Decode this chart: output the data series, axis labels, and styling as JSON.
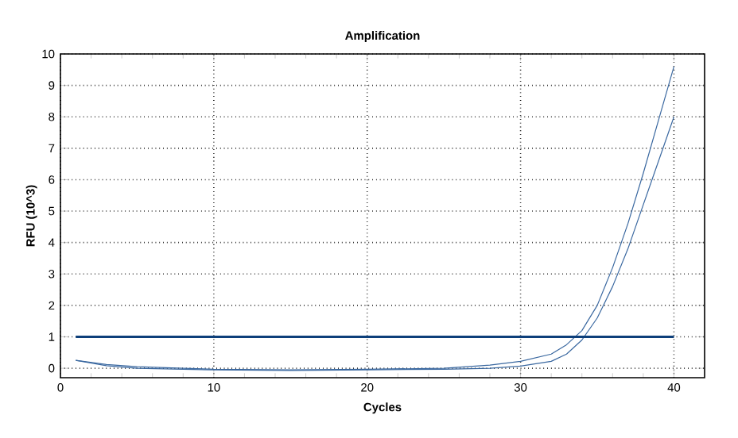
{
  "chart_data": {
    "type": "line",
    "title": "Amplification",
    "xlabel": "Cycles",
    "ylabel": "RFU (10^3)",
    "xlim": [
      0,
      42
    ],
    "ylim": [
      -0.3,
      10
    ],
    "xticks": [
      0,
      10,
      20,
      30,
      40
    ],
    "yticks": [
      0,
      1,
      2,
      3,
      4,
      5,
      6,
      7,
      8,
      9,
      10
    ],
    "grid": true,
    "line_style": "solid",
    "marker": "none",
    "ref_lines": [
      {
        "axis": "y",
        "value": 1,
        "color": "#0d3f7a"
      }
    ],
    "series": [
      {
        "color": "#3a68a0",
        "x": [
          1,
          3,
          5,
          8,
          10,
          15,
          20,
          25,
          28,
          30,
          32,
          33,
          34,
          35,
          36,
          37,
          38,
          39,
          40
        ],
        "values": [
          0.25,
          0.12,
          0.05,
          0,
          -0.03,
          -0.05,
          -0.03,
          0,
          0.1,
          0.22,
          0.45,
          0.75,
          1.2,
          2.0,
          3.2,
          4.6,
          6.2,
          7.9,
          9.6
        ]
      },
      {
        "color": "#3a68a0",
        "x": [
          1,
          3,
          5,
          8,
          10,
          15,
          20,
          25,
          28,
          30,
          32,
          33,
          34,
          35,
          36,
          37,
          38,
          39,
          40
        ],
        "values": [
          0.25,
          0.08,
          0,
          -0.03,
          -0.05,
          -0.07,
          -0.05,
          -0.03,
          0,
          0.07,
          0.22,
          0.45,
          0.9,
          1.6,
          2.6,
          3.8,
          5.2,
          6.6,
          8.0
        ]
      }
    ]
  }
}
